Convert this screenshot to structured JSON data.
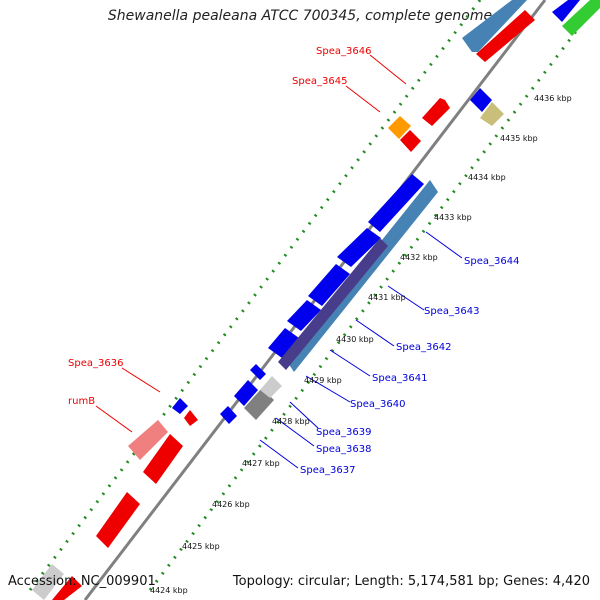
{
  "title": "Shewanella pealeana ATCC 700345, complete genome",
  "accession": "Accession: NC_009901",
  "summary": "Topology: circular; Length: 5,174,581 bp; Genes: 4,420",
  "ticks": [
    "4424 kbp",
    "4425 kbp",
    "4426 kbp",
    "4427 kbp",
    "4428 kbp",
    "4429 kbp",
    "4430 kbp",
    "4431 kbp",
    "4432 kbp",
    "4433 kbp",
    "4434 kbp",
    "4435 kbp",
    "4436 kbp"
  ],
  "labels": {
    "spea_3646": "Spea_3646",
    "spea_3645": "Spea_3645",
    "spea_3636": "Spea_3636",
    "rumB": "rumB",
    "spea_3644": "Spea_3644",
    "spea_3643": "Spea_3643",
    "spea_3642": "Spea_3642",
    "spea_3641": "Spea_3641",
    "spea_3640": "Spea_3640",
    "spea_3639": "Spea_3639",
    "spea_3638": "Spea_3638",
    "spea_3637": "Spea_3637"
  },
  "colors": {
    "red": "#ee0000",
    "blue": "#0000ee",
    "steelblue": "#4682b4",
    "slate": "#483d8b",
    "orange": "#ff9900",
    "khaki": "#c9bf7a",
    "green": "#33cc33",
    "gray": "#808080",
    "lightgray": "#cccccc",
    "pink": "#f08080",
    "dots": "#228b22",
    "backbone": "#808080",
    "red_label": "#ee0000",
    "blue_label": "#0000dd"
  }
}
